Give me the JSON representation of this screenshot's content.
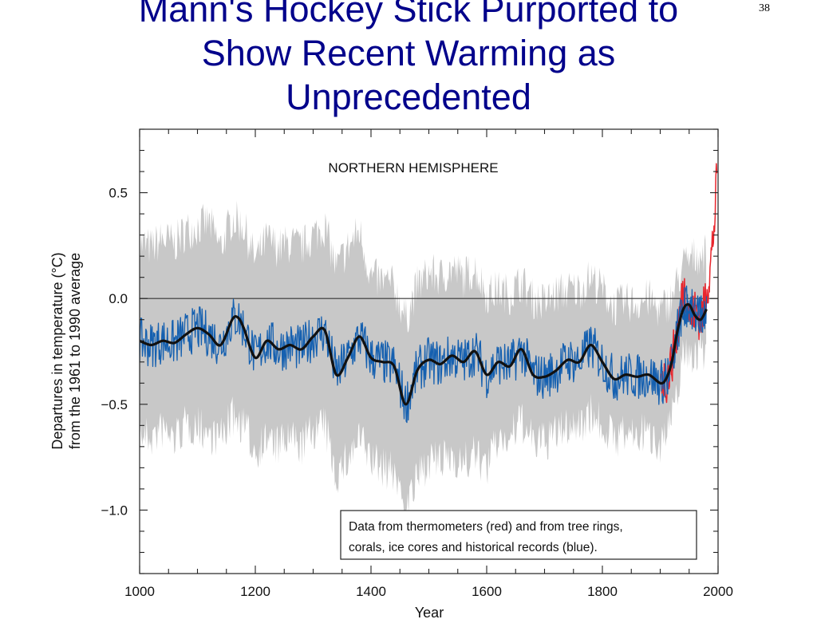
{
  "slide": {
    "title_lines": [
      "Mann's Hockey Stick Purported to",
      "Show Recent Warming as",
      "Unprecedented"
    ],
    "page_number": "38"
  },
  "colors": {
    "title": "#00008b",
    "proxy": "#1560b0",
    "thermometer": "#e8262d",
    "uncertainty": "#c8c8c8",
    "smooth": "#111111"
  },
  "chart_data": {
    "type": "line",
    "panel_label": "NORTHERN HEMISPHERE",
    "xlabel": "Year",
    "ylabel_lines": [
      "Departures in temperature (°C)",
      "from the 1961 to 1990 average"
    ],
    "xlim": [
      1000,
      2000
    ],
    "ylim": [
      -1.3,
      0.8
    ],
    "x_ticks": [
      1000,
      1200,
      1400,
      1600,
      1800,
      2000
    ],
    "y_ticks": [
      0.5,
      0.0,
      -0.5,
      -1.0
    ],
    "y_tick_labels": [
      "0.5",
      "0.0",
      "−0.5",
      "−1.0"
    ],
    "zero_line": 0.0,
    "grid": false,
    "legend": {
      "position": "bottom-right",
      "lines": [
        "Data from thermometers (red) and from tree rings,",
        "corals, ice cores and historical records (blue)."
      ]
    },
    "series": [
      {
        "key": "proxy_reconstruction",
        "kind": "noisy_line",
        "x": [
          1000,
          1020,
          1040,
          1060,
          1080,
          1100,
          1120,
          1140,
          1160,
          1170,
          1180,
          1200,
          1220,
          1240,
          1260,
          1280,
          1300,
          1320,
          1340,
          1360,
          1380,
          1400,
          1420,
          1440,
          1460,
          1480,
          1500,
          1520,
          1540,
          1560,
          1580,
          1600,
          1620,
          1640,
          1660,
          1680,
          1700,
          1720,
          1740,
          1760,
          1780,
          1800,
          1820,
          1840,
          1860,
          1880,
          1900,
          1910,
          1920,
          1930,
          1940,
          1950,
          1960,
          1970,
          1980
        ],
        "y": [
          -0.2,
          -0.22,
          -0.2,
          -0.21,
          -0.17,
          -0.14,
          -0.17,
          -0.22,
          -0.1,
          -0.09,
          -0.14,
          -0.28,
          -0.2,
          -0.24,
          -0.22,
          -0.24,
          -0.18,
          -0.15,
          -0.36,
          -0.28,
          -0.18,
          -0.28,
          -0.3,
          -0.32,
          -0.5,
          -0.34,
          -0.29,
          -0.31,
          -0.27,
          -0.3,
          -0.25,
          -0.36,
          -0.3,
          -0.32,
          -0.24,
          -0.36,
          -0.37,
          -0.34,
          -0.29,
          -0.3,
          -0.22,
          -0.3,
          -0.38,
          -0.36,
          -0.37,
          -0.36,
          -0.4,
          -0.38,
          -0.3,
          -0.15,
          -0.05,
          -0.03,
          -0.08,
          -0.1,
          -0.05
        ]
      },
      {
        "key": "smoothed",
        "kind": "smooth_line",
        "x": [
          1000,
          1020,
          1040,
          1060,
          1080,
          1100,
          1120,
          1140,
          1160,
          1170,
          1180,
          1200,
          1220,
          1240,
          1260,
          1280,
          1300,
          1320,
          1340,
          1360,
          1380,
          1400,
          1420,
          1440,
          1460,
          1480,
          1500,
          1520,
          1540,
          1560,
          1580,
          1600,
          1620,
          1640,
          1660,
          1680,
          1700,
          1720,
          1740,
          1760,
          1780,
          1800,
          1820,
          1840,
          1860,
          1880,
          1900,
          1910,
          1920,
          1930,
          1940,
          1950,
          1960,
          1970,
          1980
        ],
        "y": [
          -0.2,
          -0.22,
          -0.2,
          -0.21,
          -0.17,
          -0.14,
          -0.17,
          -0.22,
          -0.1,
          -0.09,
          -0.14,
          -0.28,
          -0.2,
          -0.24,
          -0.22,
          -0.24,
          -0.18,
          -0.15,
          -0.36,
          -0.28,
          -0.18,
          -0.28,
          -0.3,
          -0.32,
          -0.5,
          -0.34,
          -0.29,
          -0.31,
          -0.27,
          -0.3,
          -0.25,
          -0.36,
          -0.3,
          -0.32,
          -0.24,
          -0.36,
          -0.37,
          -0.34,
          -0.29,
          -0.3,
          -0.22,
          -0.3,
          -0.38,
          -0.36,
          -0.37,
          -0.36,
          -0.4,
          -0.38,
          -0.3,
          -0.15,
          -0.05,
          -0.03,
          -0.08,
          -0.1,
          -0.05
        ]
      },
      {
        "key": "thermometer",
        "kind": "noisy_line",
        "x": [
          1902,
          1910,
          1920,
          1930,
          1935,
          1940,
          1945,
          1950,
          1955,
          1960,
          1965,
          1970,
          1975,
          1980,
          1985,
          1990,
          1995,
          1998
        ],
        "y": [
          -0.35,
          -0.4,
          -0.3,
          -0.15,
          -0.05,
          0.05,
          0.02,
          -0.05,
          -0.1,
          -0.05,
          -0.08,
          -0.1,
          -0.05,
          0.05,
          0.1,
          0.25,
          0.4,
          0.6
        ]
      },
      {
        "key": "uncertainty_band",
        "kind": "band",
        "x": [
          1000,
          1020,
          1040,
          1060,
          1080,
          1100,
          1120,
          1140,
          1160,
          1180,
          1200,
          1220,
          1240,
          1260,
          1280,
          1300,
          1320,
          1340,
          1360,
          1380,
          1400,
          1420,
          1440,
          1460,
          1480,
          1500,
          1520,
          1540,
          1560,
          1580,
          1600,
          1620,
          1640,
          1660,
          1680,
          1700,
          1720,
          1740,
          1760,
          1780,
          1800,
          1820,
          1840,
          1860,
          1880,
          1900,
          1920,
          1940,
          1960,
          1980
        ],
        "upper": [
          0.22,
          0.2,
          0.24,
          0.22,
          0.28,
          0.3,
          0.32,
          0.2,
          0.34,
          0.3,
          0.14,
          0.24,
          0.2,
          0.22,
          0.2,
          0.26,
          0.3,
          0.1,
          0.2,
          0.28,
          0.06,
          0.04,
          0.02,
          -0.14,
          0.02,
          0.08,
          0.06,
          0.1,
          0.06,
          0.1,
          -0.02,
          0.0,
          -0.02,
          0.04,
          -0.04,
          -0.06,
          -0.02,
          0.0,
          0.0,
          0.06,
          0.0,
          -0.08,
          -0.06,
          -0.06,
          -0.04,
          -0.1,
          -0.04,
          0.12,
          0.16,
          0.18
        ],
        "lower": [
          -0.6,
          -0.62,
          -0.58,
          -0.62,
          -0.56,
          -0.56,
          -0.6,
          -0.62,
          -0.52,
          -0.56,
          -0.68,
          -0.62,
          -0.66,
          -0.62,
          -0.66,
          -0.58,
          -0.56,
          -0.8,
          -0.72,
          -0.62,
          -0.72,
          -0.76,
          -0.78,
          -0.94,
          -0.82,
          -0.72,
          -0.74,
          -0.7,
          -0.74,
          -0.7,
          -0.76,
          -0.62,
          -0.62,
          -0.54,
          -0.64,
          -0.64,
          -0.6,
          -0.56,
          -0.56,
          -0.5,
          -0.56,
          -0.62,
          -0.6,
          -0.6,
          -0.6,
          -0.64,
          -0.54,
          -0.22,
          -0.22,
          -0.2
        ]
      }
    ]
  }
}
